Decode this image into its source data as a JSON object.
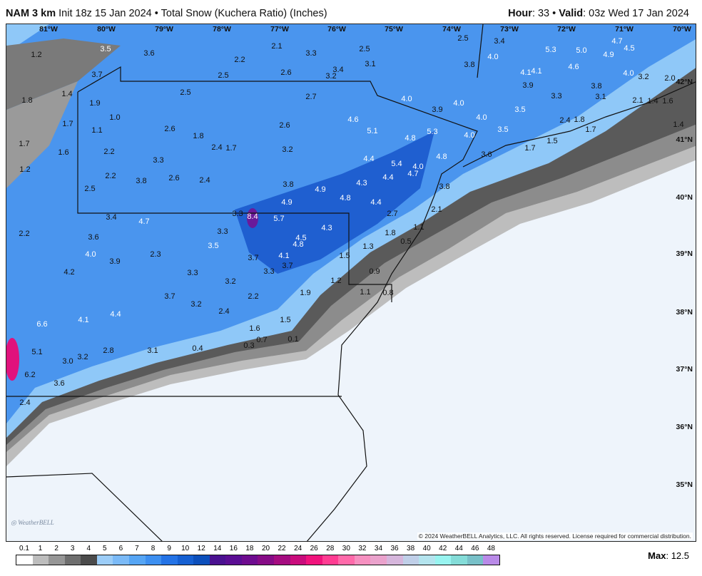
{
  "header": {
    "model": "NAM 3 km",
    "init": "Init 18z 15 Jan 2024",
    "separator": "•",
    "product": "Total Snow (Kuchera Ratio) (Inches)",
    "hour_label": "Hour",
    "hour_value": ": 33",
    "valid_label": "Valid",
    "valid_value": ": 03z Wed 17 Jan 2024"
  },
  "map": {
    "longitude_labels": [
      "81°W",
      "80°W",
      "79°W",
      "78°W",
      "77°W",
      "76°W",
      "75°W",
      "74°W",
      "73°W",
      "72°W",
      "71°W",
      "70°W"
    ],
    "latitude_labels": [
      "42°N",
      "41°N",
      "40°N",
      "39°N",
      "38°N",
      "37°N",
      "36°N",
      "35°N"
    ],
    "snow_labels": [
      "1.2",
      "3.5",
      "3.6",
      "3.7",
      "1.4",
      "1.8",
      "1.9",
      "1.0",
      "1.7",
      "1.1",
      "1.7",
      "1.6",
      "2.2",
      "1.2",
      "2.2",
      "2.5",
      "2.5",
      "2.2",
      "2.1",
      "3.3",
      "2.5",
      "3.1",
      "2.6",
      "3.2",
      "3.4",
      "2.5",
      "2.7",
      "2.6",
      "1.8",
      "2.6",
      "2.4",
      "1.7",
      "3.2",
      "3.3",
      "3.8",
      "2.6",
      "2.4",
      "3.8",
      "4.9",
      "4.9",
      "4.8",
      "4.3",
      "4.6",
      "5.1",
      "4.4",
      "5.4",
      "4.4",
      "4.7",
      "4.0",
      "4.8",
      "5.3",
      "4.8",
      "3.8",
      "4.4",
      "2.7",
      "2.1",
      "4.0",
      "3.9",
      "4.0",
      "3.8",
      "2.5",
      "3.4",
      "4.0",
      "4.1",
      "4.1",
      "5.3",
      "5.0",
      "4.9",
      "4.7",
      "4.5",
      "4.0",
      "4.6",
      "3.9",
      "3.3",
      "3.8",
      "3.1",
      "3.2",
      "2.0",
      "2.1",
      "1.4",
      "1.6",
      "1.7",
      "1.4",
      "3.5",
      "4.0",
      "4.0",
      "3.5",
      "2.4",
      "1.8",
      "3.6",
      "1.7",
      "1.5",
      "3.4",
      "4.7",
      "3.6",
      "4.0",
      "3.9",
      "2.3",
      "3.5",
      "3.3",
      "3.3",
      "8.4",
      "5.7",
      "4.5",
      "4.3",
      "4.8",
      "4.1",
      "3.7",
      "3.7",
      "3.3",
      "3.3",
      "3.2",
      "4.2",
      "3.7",
      "3.2",
      "2.4",
      "2.2",
      "1.9",
      "1.5",
      "1.3",
      "1.8",
      "1.1",
      "0.5",
      "0.9",
      "1.2",
      "1.1",
      "0.8",
      "4.1",
      "4.4",
      "6.6",
      "1.5",
      "1.6",
      "0.7",
      "0.1",
      "0.3",
      "0.4",
      "3.1",
      "2.8",
      "3.2",
      "5.1",
      "3.0",
      "6.2",
      "3.6",
      "2.4",
      "2.2"
    ],
    "copyright": "© 2024 WeatherBELL Analytics, LLC. All rights reserved. License required for commercial distribution.",
    "logo_text": "WeatherBELL",
    "colors": {
      "no_snow": "#eef4fb",
      "light_gray": "#bdbdbd",
      "mid_gray": "#8c8c8c",
      "dark_gray": "#5a5a5a",
      "light_blue": "#8fc8f8",
      "blue": "#4a95ee",
      "deep_blue": "#1f5fd0",
      "purple": "#6a1a9a"
    }
  },
  "legend": {
    "labels": [
      "0.1",
      "1",
      "2",
      "3",
      "4",
      "5",
      "6",
      "7",
      "8",
      "9",
      "10",
      "12",
      "14",
      "16",
      "18",
      "20",
      "22",
      "24",
      "26",
      "28",
      "30",
      "32",
      "34",
      "36",
      "38",
      "40",
      "42",
      "44",
      "46",
      "48"
    ],
    "colors": [
      "#ffffff",
      "#bdbdbd",
      "#969696",
      "#6e6e6e",
      "#4b4b4b",
      "#9ccdf8",
      "#7bbaf7",
      "#56a5f4",
      "#3d8ff0",
      "#2473e6",
      "#1660d2",
      "#0c4fbb",
      "#4a1190",
      "#5a0d93",
      "#6e0b8f",
      "#860b86",
      "#a50c80",
      "#c90c7c",
      "#f0137c",
      "#ff3c92",
      "#ff6aaa",
      "#f690c0",
      "#eaa2cc",
      "#d6b6dc",
      "#c0cfe8",
      "#b4e4ee",
      "#98f4f0",
      "#84dcd8",
      "#78c0c8",
      "#b98ae8"
    ],
    "max_label": "Max",
    "max_value": ": 12.5"
  }
}
